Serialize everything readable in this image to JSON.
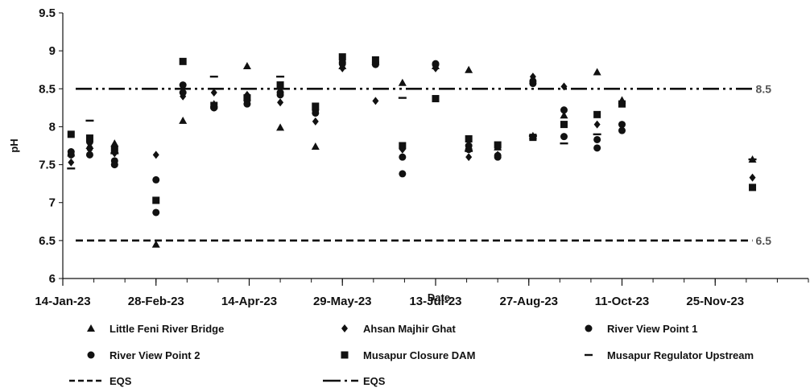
{
  "chart_data": {
    "type": "scatter",
    "title": "",
    "xlabel": "Date",
    "ylabel": "pH",
    "ylim": [
      6,
      9.5
    ],
    "yticks": [
      "6",
      "6.5",
      "7",
      "7.5",
      "8",
      "8.5",
      "9",
      "9.5"
    ],
    "xlim": [
      "2023-01-14",
      "2024-01-09"
    ],
    "xticks": [
      {
        "date": "2023-01-14",
        "label": "14-Jan-23"
      },
      {
        "date": "2023-02-28",
        "label": "28-Feb-23"
      },
      {
        "date": "2023-04-14",
        "label": "14-Apr-23"
      },
      {
        "date": "2023-05-29",
        "label": "29-May-23"
      },
      {
        "date": "2023-07-13",
        "label": "13-Jul-23"
      },
      {
        "date": "2023-08-27",
        "label": "27-Aug-23"
      },
      {
        "date": "2023-10-11",
        "label": "11-Oct-23"
      },
      {
        "date": "2023-11-25",
        "label": "25-Nov-23"
      }
    ],
    "reference_lines": [
      {
        "name": "EQS",
        "value": 6.5,
        "label": "6.5",
        "style": "dashed"
      },
      {
        "name": "EQS",
        "value": 8.5,
        "label": "8.5",
        "style": "dash-dot-dot"
      }
    ],
    "legend_position": "bottom",
    "grid": false,
    "series": [
      {
        "name": "Little Feni River Bridge",
        "marker": "triangle",
        "points": [
          {
            "x": "2023-01-18",
            "y": 7.65
          },
          {
            "x": "2023-01-27",
            "y": 7.75
          },
          {
            "x": "2023-02-08",
            "y": 7.78
          },
          {
            "x": "2023-02-28",
            "y": 6.45
          },
          {
            "x": "2023-03-13",
            "y": 8.08
          },
          {
            "x": "2023-03-28",
            "y": 8.3
          },
          {
            "x": "2023-04-13",
            "y": 8.8
          },
          {
            "x": "2023-04-29",
            "y": 7.99
          },
          {
            "x": "2023-05-16",
            "y": 7.74
          },
          {
            "x": "2023-05-29",
            "y": 8.8
          },
          {
            "x": "2023-06-14",
            "y": 8.86
          },
          {
            "x": "2023-06-27",
            "y": 8.58
          },
          {
            "x": "2023-07-13",
            "y": 8.8
          },
          {
            "x": "2023-07-29",
            "y": 8.75
          },
          {
            "x": "2023-08-12",
            "y": 7.73
          },
          {
            "x": "2023-08-29",
            "y": 7.88
          },
          {
            "x": "2023-09-13",
            "y": 8.15
          },
          {
            "x": "2023-09-29",
            "y": 8.72
          },
          {
            "x": "2023-10-11",
            "y": 8.35
          },
          {
            "x": "2023-12-13",
            "y": 7.57
          }
        ]
      },
      {
        "name": "Ahsan Majhir Ghat",
        "marker": "diamond",
        "points": [
          {
            "x": "2023-01-18",
            "y": 7.53
          },
          {
            "x": "2023-01-27",
            "y": 7.7
          },
          {
            "x": "2023-02-08",
            "y": 7.65
          },
          {
            "x": "2023-02-28",
            "y": 7.63
          },
          {
            "x": "2023-03-13",
            "y": 8.4
          },
          {
            "x": "2023-03-28",
            "y": 8.45
          },
          {
            "x": "2023-04-13",
            "y": 8.42
          },
          {
            "x": "2023-04-29",
            "y": 8.32
          },
          {
            "x": "2023-05-16",
            "y": 8.07
          },
          {
            "x": "2023-05-29",
            "y": 8.77
          },
          {
            "x": "2023-06-14",
            "y": 8.34
          },
          {
            "x": "2023-06-27",
            "y": 7.7
          },
          {
            "x": "2023-07-13",
            "y": 8.77
          },
          {
            "x": "2023-07-29",
            "y": 7.6
          },
          {
            "x": "2023-08-12",
            "y": 7.63
          },
          {
            "x": "2023-08-29",
            "y": 8.66
          },
          {
            "x": "2023-09-13",
            "y": 8.53
          },
          {
            "x": "2023-09-29",
            "y": 8.03
          },
          {
            "x": "2023-10-11",
            "y": 8.32
          },
          {
            "x": "2023-12-13",
            "y": 7.33
          }
        ]
      },
      {
        "name": "River View Point 1",
        "marker": "circle",
        "points": [
          {
            "x": "2023-01-18",
            "y": 7.63
          },
          {
            "x": "2023-01-27",
            "y": 7.63
          },
          {
            "x": "2023-02-08",
            "y": 7.55
          },
          {
            "x": "2023-02-28",
            "y": 7.3
          },
          {
            "x": "2023-03-13",
            "y": 8.55
          },
          {
            "x": "2023-03-28",
            "y": 8.25
          },
          {
            "x": "2023-04-13",
            "y": 8.35
          },
          {
            "x": "2023-04-29",
            "y": 8.45
          },
          {
            "x": "2023-05-16",
            "y": 8.22
          },
          {
            "x": "2023-05-29",
            "y": 8.85
          },
          {
            "x": "2023-06-14",
            "y": 8.82
          },
          {
            "x": "2023-06-27",
            "y": 7.6
          },
          {
            "x": "2023-07-13",
            "y": 8.83
          },
          {
            "x": "2023-07-29",
            "y": 7.75
          },
          {
            "x": "2023-08-12",
            "y": 7.6
          },
          {
            "x": "2023-08-29",
            "y": 8.57
          },
          {
            "x": "2023-09-13",
            "y": 8.22
          },
          {
            "x": "2023-09-29",
            "y": 7.83
          },
          {
            "x": "2023-10-11",
            "y": 8.03
          }
        ]
      },
      {
        "name": "River View Point 2",
        "marker": "circle",
        "points": [
          {
            "x": "2023-01-18",
            "y": 7.67
          },
          {
            "x": "2023-01-27",
            "y": 7.8
          },
          {
            "x": "2023-02-08",
            "y": 7.5
          },
          {
            "x": "2023-02-28",
            "y": 6.87
          },
          {
            "x": "2023-03-13",
            "y": 8.45
          },
          {
            "x": "2023-03-28",
            "y": 8.25
          },
          {
            "x": "2023-04-13",
            "y": 8.3
          },
          {
            "x": "2023-04-29",
            "y": 8.42
          },
          {
            "x": "2023-05-16",
            "y": 8.18
          },
          {
            "x": "2023-05-29",
            "y": 8.83
          },
          {
            "x": "2023-06-14",
            "y": 8.85
          },
          {
            "x": "2023-06-27",
            "y": 7.38
          },
          {
            "x": "2023-07-13",
            "y": 8.82
          },
          {
            "x": "2023-07-29",
            "y": 7.7
          },
          {
            "x": "2023-08-12",
            "y": 7.62
          },
          {
            "x": "2023-08-29",
            "y": 8.6
          },
          {
            "x": "2023-09-13",
            "y": 7.87
          },
          {
            "x": "2023-09-29",
            "y": 7.72
          },
          {
            "x": "2023-10-11",
            "y": 7.95
          }
        ]
      },
      {
        "name": "Musapur Closure DAM",
        "marker": "square",
        "points": [
          {
            "x": "2023-01-18",
            "y": 7.9
          },
          {
            "x": "2023-01-27",
            "y": 7.85
          },
          {
            "x": "2023-02-08",
            "y": 7.7
          },
          {
            "x": "2023-02-28",
            "y": 7.03
          },
          {
            "x": "2023-03-13",
            "y": 8.86
          },
          {
            "x": "2023-03-28",
            "y": 8.28
          },
          {
            "x": "2023-04-13",
            "y": 8.38
          },
          {
            "x": "2023-04-29",
            "y": 8.55
          },
          {
            "x": "2023-05-16",
            "y": 8.27
          },
          {
            "x": "2023-05-29",
            "y": 8.92
          },
          {
            "x": "2023-06-14",
            "y": 8.88
          },
          {
            "x": "2023-06-27",
            "y": 7.75
          },
          {
            "x": "2023-07-13",
            "y": 8.37
          },
          {
            "x": "2023-07-29",
            "y": 7.84
          },
          {
            "x": "2023-08-12",
            "y": 7.76
          },
          {
            "x": "2023-08-29",
            "y": 7.86
          },
          {
            "x": "2023-09-13",
            "y": 8.03
          },
          {
            "x": "2023-09-29",
            "y": 8.16
          },
          {
            "x": "2023-10-11",
            "y": 8.3
          },
          {
            "x": "2023-12-13",
            "y": 7.2
          }
        ]
      },
      {
        "name": "Musapur Regulator Upstream",
        "marker": "dash",
        "points": [
          {
            "x": "2023-01-18",
            "y": 7.45
          },
          {
            "x": "2023-01-27",
            "y": 8.08
          },
          {
            "x": "2023-02-08",
            "y": 7.65
          },
          {
            "x": "2023-03-28",
            "y": 8.66
          },
          {
            "x": "2023-04-29",
            "y": 8.66
          },
          {
            "x": "2023-06-27",
            "y": 8.38
          },
          {
            "x": "2023-07-29",
            "y": 7.68
          },
          {
            "x": "2023-08-29",
            "y": 7.88
          },
          {
            "x": "2023-09-13",
            "y": 7.78
          },
          {
            "x": "2023-09-29",
            "y": 7.9
          },
          {
            "x": "2023-12-13",
            "y": 7.57
          }
        ]
      }
    ]
  }
}
